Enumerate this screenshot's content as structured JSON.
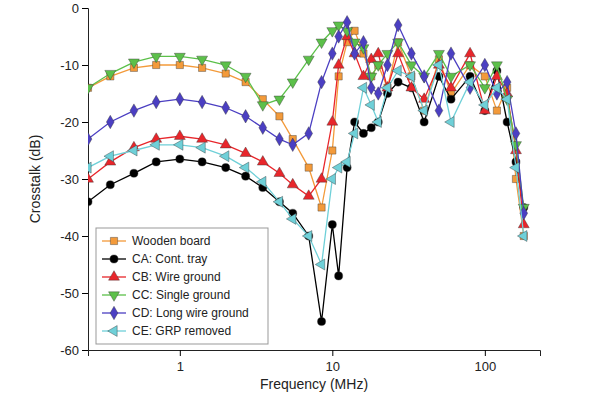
{
  "chart_data": {
    "type": "line",
    "x_label": "Frequency (MHz)",
    "y_label": "Crosstalk (dB)",
    "log": "x",
    "grid": false,
    "legend": "lower left",
    "xlim": [
      0.25,
      230
    ],
    "ylim": [
      -60,
      0
    ],
    "xticks": [
      1,
      10,
      100
    ],
    "yticks": [
      -60,
      -50,
      -40,
      -30,
      -20,
      -10,
      0
    ],
    "x": [
      0.25,
      0.35,
      0.5,
      0.7,
      1,
      1.4,
      2,
      2.7,
      3.5,
      4.5,
      5.5,
      7,
      8.5,
      10,
      11,
      12.5,
      14,
      16,
      18,
      20,
      23,
      27,
      33,
      40,
      50,
      60,
      80,
      100,
      120,
      140,
      160,
      180
    ],
    "series": [
      {
        "name": "Wooden board",
        "color": "#f39a3a",
        "marker": "square",
        "values": [
          -14,
          -12,
          -10.5,
          -10,
          -10,
          -10.5,
          -11.5,
          -13,
          -16,
          -19,
          -23,
          -28,
          -35,
          -25,
          -12,
          -6,
          -4,
          -8,
          -12,
          -10,
          -14,
          -6,
          -12,
          -18,
          -9,
          -15,
          -10,
          -12,
          -18,
          -14,
          -30,
          -40
        ]
      },
      {
        "name": "CA: Cont. tray",
        "color": "#000000",
        "marker": "circle",
        "values": [
          -34,
          -31,
          -29,
          -27,
          -26.5,
          -27,
          -28,
          -29.5,
          -31.5,
          -34,
          -36,
          -40,
          -55,
          -38,
          -47,
          -28,
          -20,
          -22,
          -21,
          -20,
          -15,
          -13,
          -14,
          -20,
          -12,
          -16,
          -12,
          -18,
          -11,
          -20,
          -27,
          -35
        ]
      },
      {
        "name": "CB: Wire ground",
        "color": "#e8262b",
        "marker": "triangle-up",
        "values": [
          -30,
          -27,
          -24.5,
          -23,
          -22.5,
          -23,
          -24,
          -25.5,
          -27,
          -29,
          -31,
          -33,
          -30,
          -20,
          -10,
          -5,
          -8,
          -12,
          -9,
          -8,
          -14,
          -8,
          -14,
          -16,
          -10,
          -14,
          -8,
          -18,
          -12,
          -15,
          -25,
          -38
        ]
      },
      {
        "name": "CC: Single ground",
        "color": "#5cc04a",
        "marker": "triangle-down",
        "values": [
          -14,
          -11.5,
          -9.5,
          -8.5,
          -8.5,
          -9,
          -10,
          -12,
          -17,
          -16,
          -13,
          -9,
          -6,
          -4,
          -3,
          -4,
          -6,
          -7,
          -12,
          -10,
          -8,
          -6,
          -10,
          -12,
          -8,
          -12,
          -10,
          -14,
          -10,
          -16,
          -24,
          -35
        ]
      },
      {
        "name": "CD: Long wire ground",
        "color": "#4b3fc2",
        "marker": "diamond",
        "values": [
          -23,
          -20,
          -18,
          -16.5,
          -16,
          -16.5,
          -17.5,
          -19,
          -21,
          -23,
          -24,
          -22,
          -13,
          -8,
          -5,
          -2.5,
          -8,
          -6,
          -14,
          -15,
          -10,
          -3,
          -8,
          -12,
          -18,
          -8,
          -14,
          -10,
          -15,
          -13,
          -22,
          -36
        ]
      },
      {
        "name": "CE: GRP removed",
        "color": "#6fd0d8",
        "marker": "triangle-left",
        "values": [
          -28,
          -26,
          -25,
          -24,
          -24,
          -24.5,
          -26,
          -28,
          -30.5,
          -34,
          -37,
          -40,
          -45,
          -30,
          -28,
          -27,
          -22,
          -14,
          -17,
          -20,
          -14,
          -11,
          -12,
          -18,
          -10,
          -20,
          -13,
          -17,
          -14,
          -16,
          -28,
          -40
        ]
      }
    ]
  }
}
